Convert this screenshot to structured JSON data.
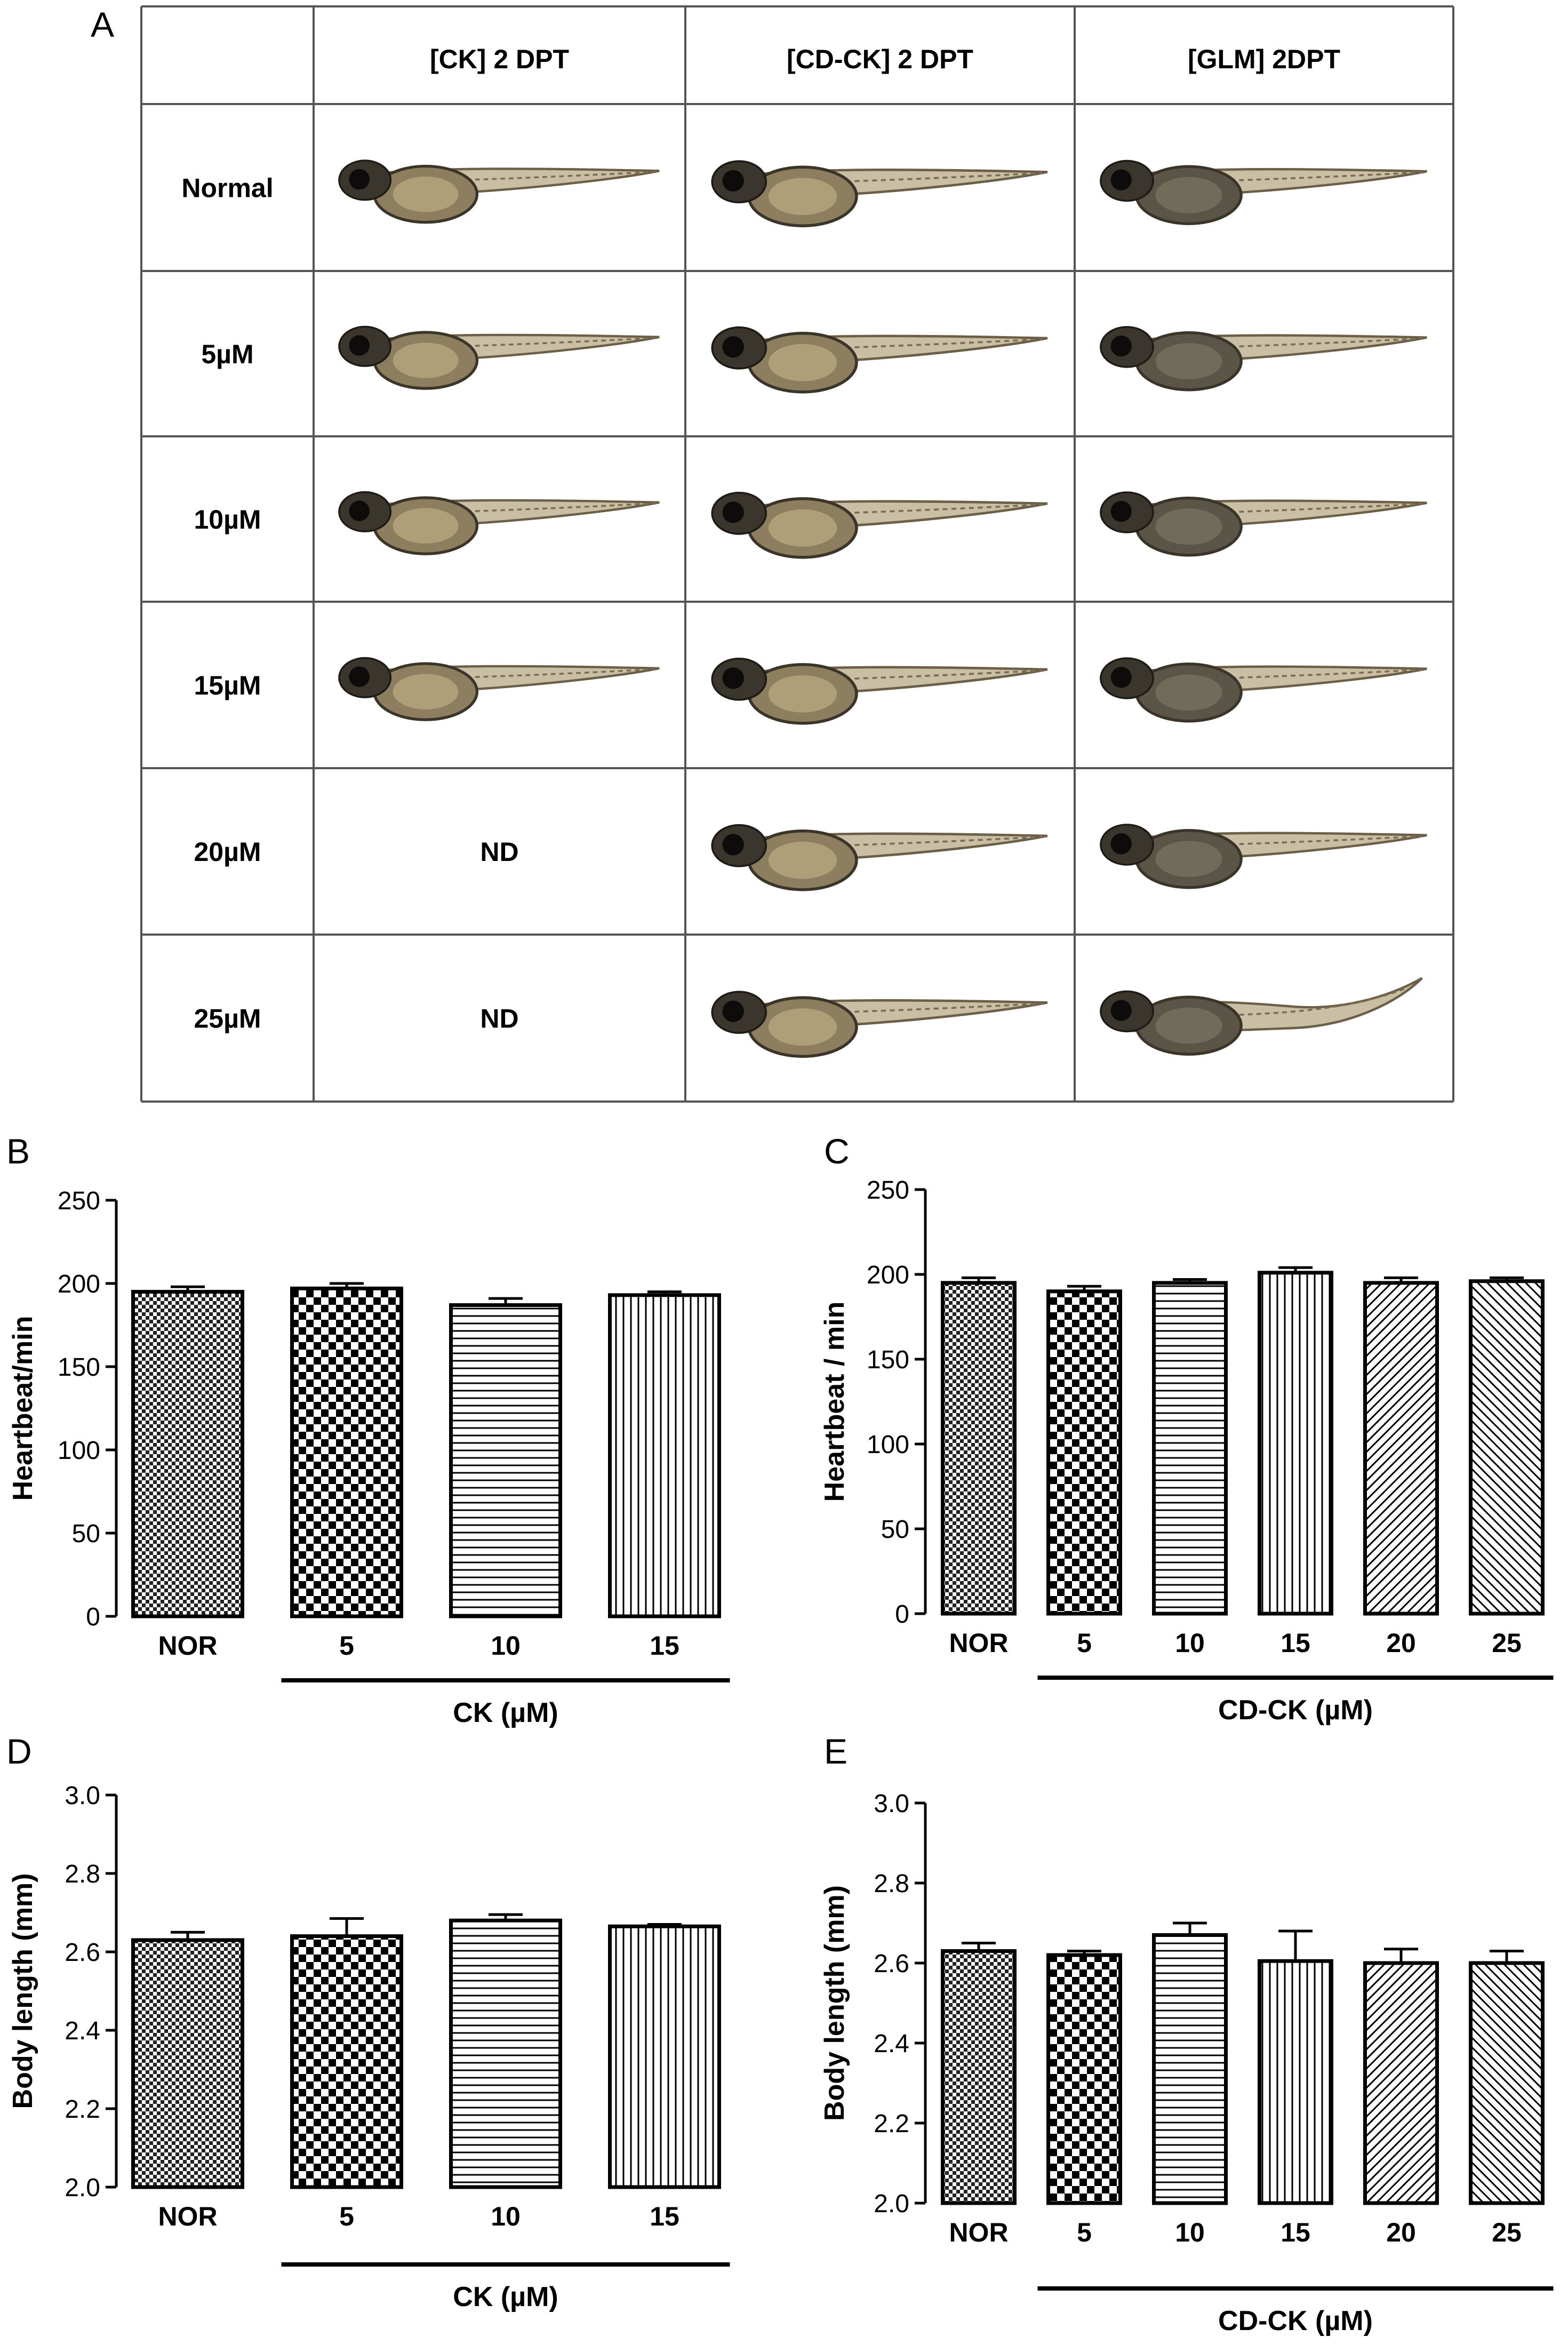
{
  "panel_labels": [
    "A",
    "B",
    "C",
    "D",
    "E"
  ],
  "table": {
    "columns": [
      "",
      "[CK] 2 DPT",
      "[CD-CK] 2 DPT",
      "[GLM] 2DPT"
    ],
    "rows": [
      {
        "label": "Normal",
        "cells": [
          "img",
          "img",
          "img"
        ]
      },
      {
        "label": "5µM",
        "cells": [
          "img",
          "img",
          "img"
        ]
      },
      {
        "label": "10µM",
        "cells": [
          "img",
          "img",
          "img"
        ]
      },
      {
        "label": "15µM",
        "cells": [
          "img",
          "img",
          "img"
        ]
      },
      {
        "label": "20µM",
        "cells": [
          "ND",
          "img",
          "img"
        ]
      },
      {
        "label": "25µM",
        "cells": [
          "ND",
          "img",
          "img"
        ]
      }
    ]
  },
  "chart_data": [
    {
      "panel": "B",
      "type": "bar",
      "categories": [
        "NOR",
        "5",
        "10",
        "15"
      ],
      "values": [
        195,
        197,
        187,
        193
      ],
      "errors": [
        3,
        3,
        4,
        2
      ],
      "patterns": [
        "fine-check",
        "check",
        "hlines",
        "vlines"
      ],
      "ylabel": "Heartbeat/min",
      "xlabel": "CK (µM)",
      "ylim": [
        0,
        250
      ],
      "yticks": [
        "0",
        "50",
        "100",
        "150",
        "200",
        "250"
      ]
    },
    {
      "panel": "C",
      "type": "bar",
      "categories": [
        "NOR",
        "5",
        "10",
        "15",
        "20",
        "25"
      ],
      "values": [
        195,
        190,
        195,
        201,
        195,
        196
      ],
      "errors": [
        3,
        3,
        2,
        3,
        3,
        2
      ],
      "patterns": [
        "fine-check",
        "check",
        "hlines",
        "vlines",
        "diag-up",
        "diag-down"
      ],
      "ylabel": "Heartbeat / min",
      "xlabel": "CD-CK (µM)",
      "ylim": [
        0,
        250
      ],
      "yticks": [
        "0",
        "50",
        "100",
        "150",
        "200",
        "250"
      ]
    },
    {
      "panel": "D",
      "type": "bar",
      "categories": [
        "NOR",
        "5",
        "10",
        "15"
      ],
      "values": [
        2.63,
        2.64,
        2.68,
        2.665
      ],
      "errors": [
        0.02,
        0.045,
        0.015,
        0.005
      ],
      "patterns": [
        "fine-check",
        "check",
        "hlines",
        "vlines"
      ],
      "ylabel": "Body length (mm)",
      "xlabel": "CK (µM)",
      "ylim": [
        2.0,
        3.0
      ],
      "yticks": [
        "2.0",
        "2.2",
        "2.4",
        "2.6",
        "2.8",
        "3.0"
      ]
    },
    {
      "panel": "E",
      "type": "bar",
      "categories": [
        "NOR",
        "5",
        "10",
        "15",
        "20",
        "25"
      ],
      "values": [
        2.63,
        2.62,
        2.67,
        2.605,
        2.6,
        2.6
      ],
      "errors": [
        0.02,
        0.01,
        0.03,
        0.075,
        0.035,
        0.03
      ],
      "patterns": [
        "fine-check",
        "check",
        "hlines",
        "vlines",
        "diag-up",
        "diag-down"
      ],
      "ylabel": "Body length (mm)",
      "xlabel": "CD-CK (µM)",
      "ylim": [
        2.0,
        3.0
      ],
      "yticks": [
        "2.0",
        "2.2",
        "2.4",
        "2.6",
        "2.8",
        "3.0"
      ]
    }
  ]
}
